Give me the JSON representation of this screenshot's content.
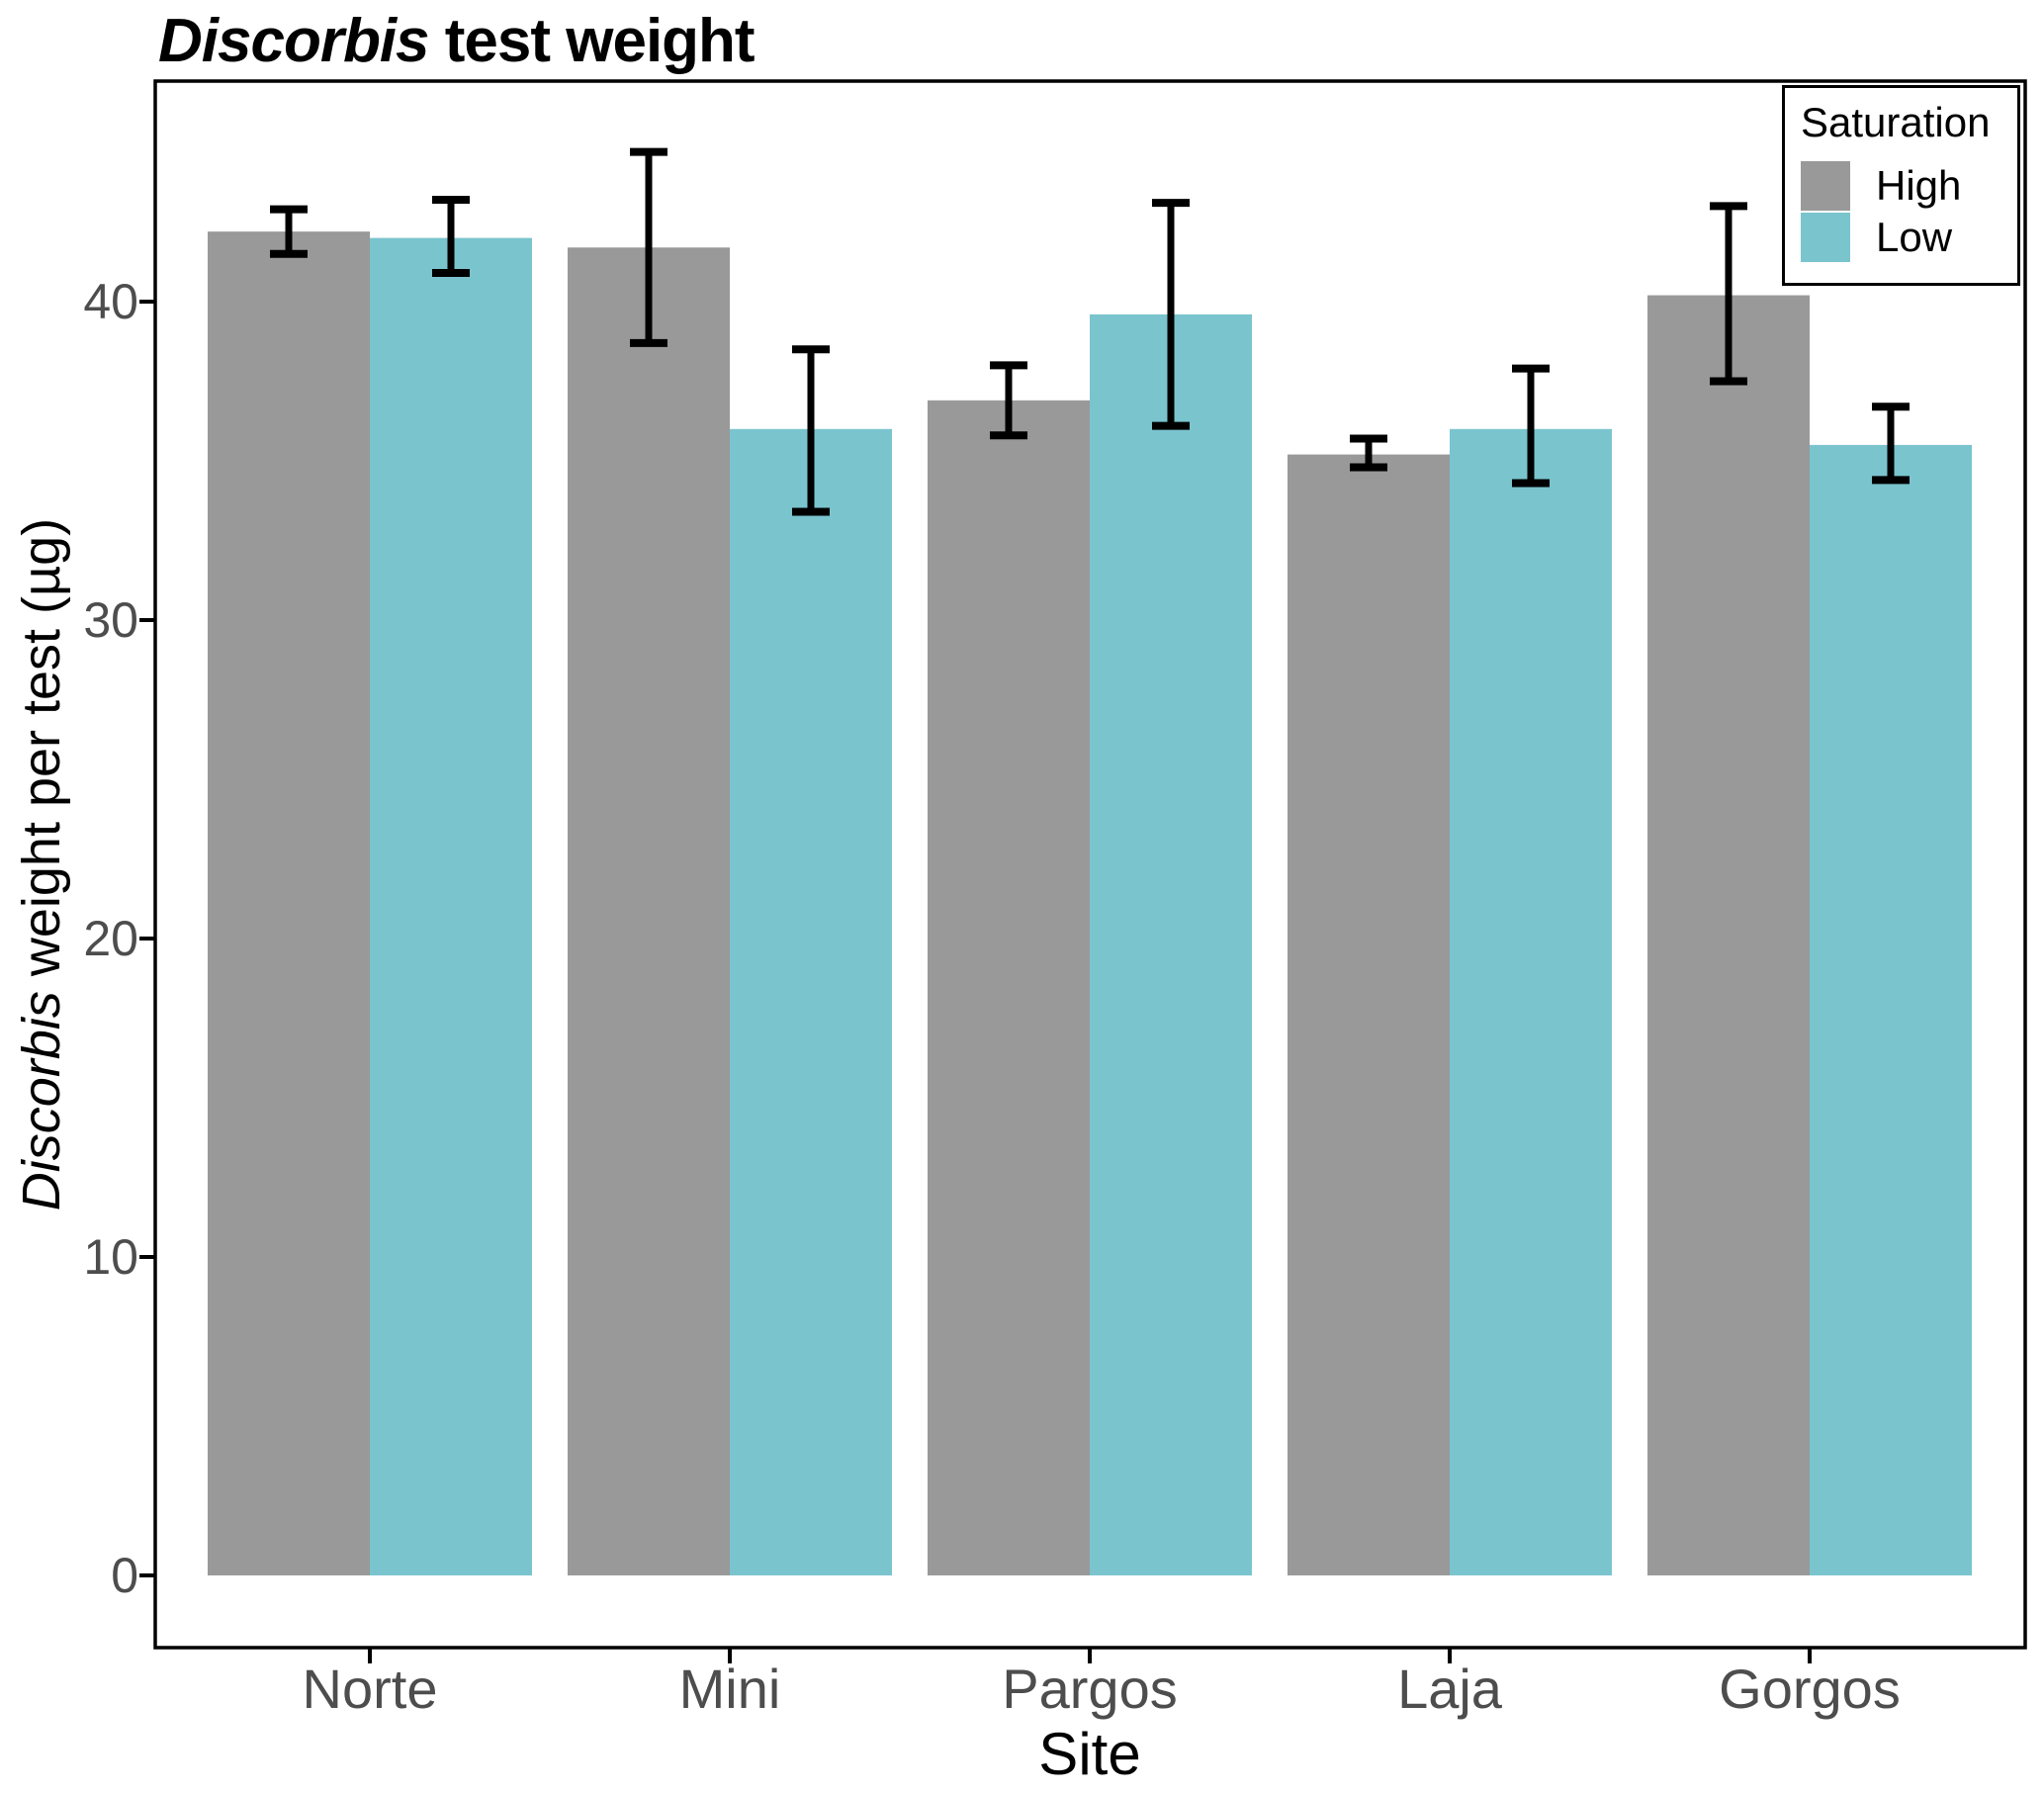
{
  "title": {
    "italic": "Discorbis",
    "rest": " test weight"
  },
  "axes": {
    "x_label": "Site",
    "y_label_italic": "Discorbis",
    "y_label_rest": " weight per test (µg)",
    "y_ticks": [
      0,
      10,
      20,
      30,
      40
    ]
  },
  "legend": {
    "title": "Saturation",
    "items": [
      {
        "label": "High",
        "color": "#999999"
      },
      {
        "label": "Low",
        "color": "#7AC4CE"
      }
    ]
  },
  "colors": {
    "bar_high": "#999999",
    "bar_low": "#7AC4CE",
    "tick_label": "#4D4D4D",
    "axis": "#000000",
    "error_bar": "#000000",
    "background": "#FFFFFF"
  },
  "chart_data": {
    "type": "bar",
    "title": "Discorbis test weight",
    "xlabel": "Site",
    "ylabel": "Discorbis weight per test (µg)",
    "categories": [
      "Norte",
      "Mini",
      "Pargos",
      "Laja",
      "Gorgos"
    ],
    "series": [
      {
        "name": "High",
        "color": "#999999",
        "values": [
          42.2,
          41.7,
          36.9,
          35.2,
          40.2
        ],
        "error_low": [
          41.5,
          38.7,
          35.8,
          34.8,
          37.5
        ],
        "error_high": [
          42.9,
          44.7,
          38.0,
          35.7,
          43.0
        ]
      },
      {
        "name": "Low",
        "color": "#7AC4CE",
        "values": [
          42.0,
          36.0,
          39.6,
          36.0,
          35.5
        ],
        "error_low": [
          40.9,
          33.4,
          36.1,
          34.3,
          34.4
        ],
        "error_high": [
          43.2,
          38.5,
          43.1,
          37.9,
          36.7
        ]
      }
    ],
    "ylim": [
      0,
      46.9
    ],
    "grid": false,
    "legend_position": "top-right-inside",
    "legend_title": "Saturation"
  }
}
